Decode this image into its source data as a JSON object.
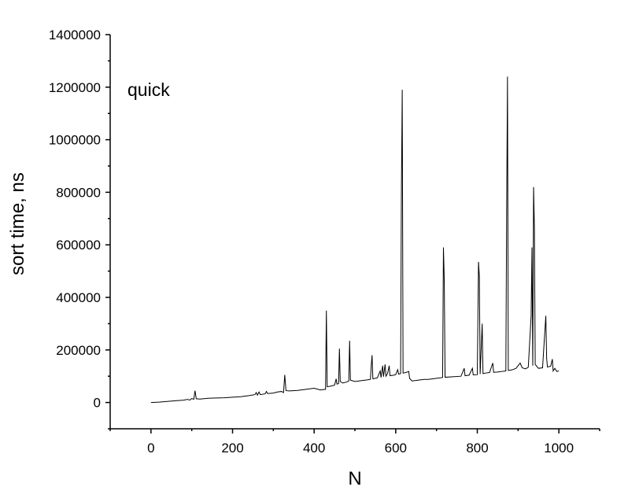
{
  "chart_data": {
    "type": "line",
    "title": "",
    "annotation": "quick",
    "xlabel": "N",
    "ylabel": "sort time, ns",
    "xlim": [
      -100,
      1100
    ],
    "ylim": [
      -100000,
      1400000
    ],
    "x_ticks": [
      0,
      200,
      400,
      600,
      800,
      1000
    ],
    "y_ticks": [
      0,
      200000,
      400000,
      600000,
      800000,
      1000000,
      1200000,
      1400000
    ],
    "grid": false,
    "legend": "none",
    "series": [
      {
        "color": "#000000",
        "points": [
          [
            0,
            0
          ],
          [
            20,
            1500
          ],
          [
            40,
            4000
          ],
          [
            60,
            6500
          ],
          [
            80,
            9000
          ],
          [
            90,
            12000
          ],
          [
            95,
            9000
          ],
          [
            100,
            15000
          ],
          [
            105,
            12000
          ],
          [
            108,
            45000
          ],
          [
            111,
            14000
          ],
          [
            120,
            13000
          ],
          [
            140,
            16000
          ],
          [
            160,
            17000
          ],
          [
            180,
            18000
          ],
          [
            200,
            20000
          ],
          [
            220,
            22000
          ],
          [
            240,
            26000
          ],
          [
            255,
            30000
          ],
          [
            258,
            38000
          ],
          [
            261,
            28000
          ],
          [
            265,
            40000
          ],
          [
            268,
            30000
          ],
          [
            280,
            33000
          ],
          [
            283,
            42000
          ],
          [
            286,
            34000
          ],
          [
            300,
            36000
          ],
          [
            310,
            40000
          ],
          [
            320,
            42000
          ],
          [
            325,
            38000
          ],
          [
            328,
            105000
          ],
          [
            331,
            45000
          ],
          [
            340,
            44000
          ],
          [
            360,
            46000
          ],
          [
            380,
            50000
          ],
          [
            400,
            54000
          ],
          [
            415,
            48000
          ],
          [
            428,
            50000
          ],
          [
            430,
            350000
          ],
          [
            432,
            60000
          ],
          [
            440,
            62000
          ],
          [
            450,
            66000
          ],
          [
            454,
            90000
          ],
          [
            456,
            70000
          ],
          [
            460,
            72000
          ],
          [
            462,
            205000
          ],
          [
            464,
            80000
          ],
          [
            470,
            74000
          ],
          [
            480,
            78000
          ],
          [
            485,
            82000
          ],
          [
            487,
            235000
          ],
          [
            489,
            85000
          ],
          [
            500,
            80000
          ],
          [
            510,
            82000
          ],
          [
            520,
            84000
          ],
          [
            530,
            86000
          ],
          [
            538,
            88000
          ],
          [
            540,
            140000
          ],
          [
            542,
            180000
          ],
          [
            544,
            90000
          ],
          [
            550,
            92000
          ],
          [
            555,
            94000
          ],
          [
            562,
            120000
          ],
          [
            564,
            95000
          ],
          [
            568,
            140000
          ],
          [
            570,
            98000
          ],
          [
            574,
            145000
          ],
          [
            576,
            100000
          ],
          [
            580,
            110000
          ],
          [
            584,
            140000
          ],
          [
            586,
            102000
          ],
          [
            595,
            104000
          ],
          [
            600,
            106000
          ],
          [
            605,
            125000
          ],
          [
            607,
            108000
          ],
          [
            612,
            110000
          ],
          [
            614,
            815000
          ],
          [
            616,
            1190000
          ],
          [
            618,
            112000
          ],
          [
            625,
            114000
          ],
          [
            632,
            118000
          ],
          [
            634,
            92000
          ],
          [
            640,
            82000
          ],
          [
            660,
            86000
          ],
          [
            670,
            88000
          ],
          [
            680,
            88000
          ],
          [
            700,
            92000
          ],
          [
            715,
            95000
          ],
          [
            717,
            590000
          ],
          [
            719,
            470000
          ],
          [
            721,
            96000
          ],
          [
            740,
            98000
          ],
          [
            760,
            100000
          ],
          [
            768,
            130000
          ],
          [
            770,
            102000
          ],
          [
            780,
            104000
          ],
          [
            788,
            130000
          ],
          [
            790,
            105000
          ],
          [
            800,
            106000
          ],
          [
            803,
            535000
          ],
          [
            805,
            480000
          ],
          [
            807,
            108000
          ],
          [
            812,
            300000
          ],
          [
            814,
            110000
          ],
          [
            820,
            112000
          ],
          [
            830,
            114000
          ],
          [
            838,
            150000
          ],
          [
            840,
            115000
          ],
          [
            850,
            116000
          ],
          [
            860,
            118000
          ],
          [
            870,
            120000
          ],
          [
            872,
            730000
          ],
          [
            874,
            1240000
          ],
          [
            876,
            122000
          ],
          [
            885,
            124000
          ],
          [
            895,
            130000
          ],
          [
            905,
            150000
          ],
          [
            910,
            132000
          ],
          [
            918,
            128000
          ],
          [
            925,
            134000
          ],
          [
            932,
            330000
          ],
          [
            934,
            590000
          ],
          [
            936,
            140000
          ],
          [
            938,
            820000
          ],
          [
            940,
            660000
          ],
          [
            942,
            145000
          ],
          [
            950,
            130000
          ],
          [
            960,
            132000
          ],
          [
            968,
            330000
          ],
          [
            970,
            168000
          ],
          [
            972,
            135000
          ],
          [
            980,
            138000
          ],
          [
            984,
            165000
          ],
          [
            986,
            120000
          ],
          [
            990,
            130000
          ],
          [
            995,
            118000
          ],
          [
            1000,
            120000
          ]
        ]
      }
    ]
  }
}
